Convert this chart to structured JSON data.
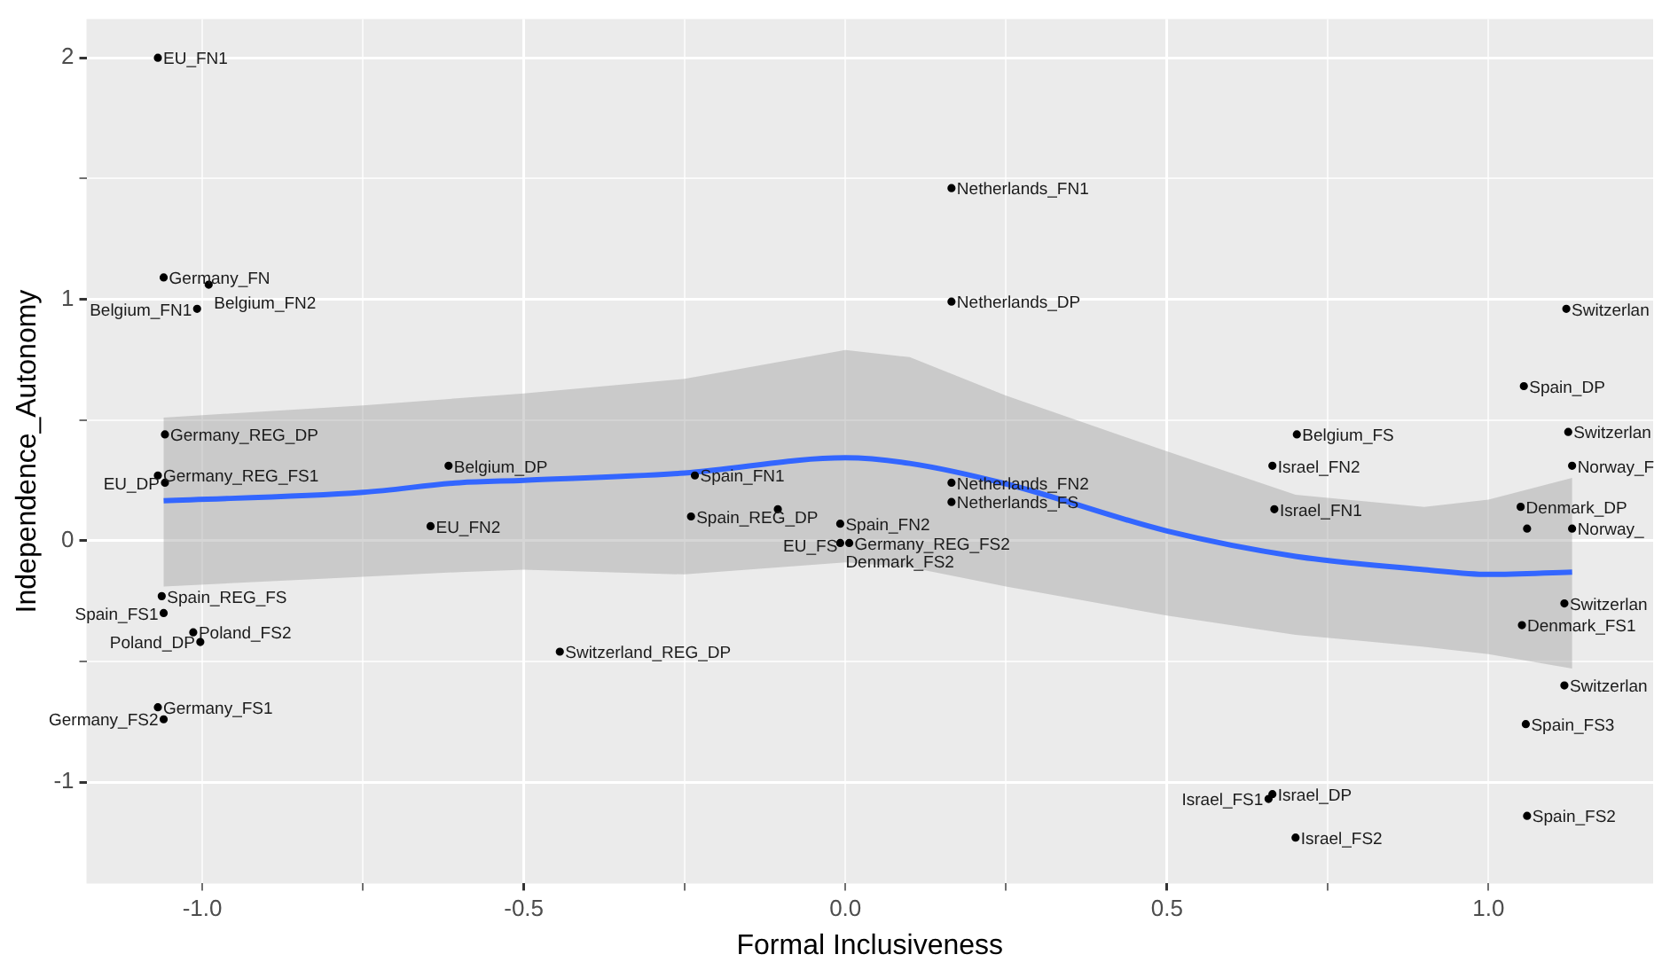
{
  "chart_data": {
    "type": "scatter",
    "xlabel": "Formal Inclusiveness",
    "ylabel": "Independence_Autonomy",
    "xlim": [
      -1.18,
      1.256
    ],
    "ylim": [
      -1.42,
      2.16
    ],
    "xticks": [
      {
        "value": -1,
        "label": "-1.0"
      },
      {
        "value": -0.75,
        "label": null
      },
      -0.5,
      {
        "value": -0.25,
        "label": null
      },
      {
        "value": 0,
        "label": "0.0"
      },
      {
        "value": 0.25,
        "label": null
      },
      0.5,
      {
        "value": 0.75,
        "label": null
      },
      {
        "value": 1,
        "label": "1.0"
      }
    ],
    "yticks": [
      -1,
      {
        "value": -0.5,
        "label": null
      },
      0,
      {
        "value": 0.5,
        "label": null
      },
      1,
      {
        "value": 1.5,
        "label": null
      },
      2
    ],
    "grid": true,
    "legend": false,
    "marker": "circle",
    "series": [
      {
        "color": "#000000",
        "x": [
          -1.069,
          -1.06,
          -0.99,
          -1.008,
          -1.058,
          -1.069,
          -1.058,
          -0.617,
          -0.645,
          -1.063,
          -1.06,
          -1.014,
          -1.003,
          -1.069,
          -1.06,
          -0.444,
          0.165,
          0.165,
          -0.234,
          -0.24,
          -0.105,
          -0.008,
          0.006,
          -0.008,
          0.165,
          0.165,
          0.702,
          0.664,
          0.667,
          0.664,
          0.658,
          0.7,
          1.121,
          1.055,
          1.124,
          1.13,
          1.05,
          1.06,
          1.13,
          1.118,
          1.052,
          1.118,
          1.058,
          1.06
        ],
        "values": [
          2.0,
          1.09,
          1.06,
          0.96,
          0.44,
          0.27,
          0.24,
          0.31,
          0.06,
          -0.23,
          -0.3,
          -0.38,
          -0.42,
          -0.69,
          -0.74,
          -0.46,
          1.46,
          0.99,
          0.27,
          0.1,
          0.13,
          0.07,
          -0.01,
          -0.01,
          0.24,
          0.16,
          0.44,
          0.31,
          0.13,
          -1.05,
          -1.07,
          -1.23,
          0.96,
          0.64,
          0.45,
          0.31,
          0.14,
          0.05,
          0.05,
          -0.26,
          -0.35,
          -0.6,
          -0.76,
          -1.14
        ]
      },
      {
        "type": "line",
        "marker": "none",
        "color": "#3366ff",
        "x": [
          -1.06,
          -0.75,
          -0.6,
          -0.5,
          -0.25,
          0.0,
          0.1,
          0.25,
          0.5,
          0.7,
          0.9,
          1.0,
          1.13
        ],
        "values": [
          0.165,
          0.2,
          0.24,
          0.25,
          0.28,
          0.343,
          0.32,
          0.235,
          0.04,
          -0.065,
          -0.12,
          -0.14,
          -0.13
        ],
        "lower": [
          -0.19,
          -0.15,
          -0.13,
          -0.12,
          -0.14,
          -0.09,
          -0.11,
          -0.19,
          -0.31,
          -0.39,
          -0.44,
          -0.47,
          -0.53
        ],
        "upper": [
          0.51,
          0.56,
          0.59,
          0.61,
          0.67,
          0.79,
          0.76,
          0.6,
          0.37,
          0.19,
          0.14,
          0.17,
          0.26
        ]
      }
    ],
    "annotations": [
      {
        "text": "EU_FN1",
        "x": -1.069,
        "y": 2.0
      },
      {
        "text": "Germany_FN",
        "x": -1.06,
        "y": 1.09
      },
      {
        "text": "Belgium_FN2",
        "x": -0.99,
        "y": 1.06
      },
      {
        "text": "Belgium_FN1",
        "x": -1.008,
        "y": 0.96
      },
      {
        "text": "Germany_REG_DP",
        "x": -1.058,
        "y": 0.44
      },
      {
        "text": "Germany_REG_FS1",
        "x": -1.069,
        "y": 0.27
      },
      {
        "text": "EU_DP",
        "x": -1.058,
        "y": 0.24
      },
      {
        "text": "Belgium_DP",
        "x": -0.617,
        "y": 0.31
      },
      {
        "text": "EU_FN2",
        "x": -0.645,
        "y": 0.06
      },
      {
        "text": "Spain_REG_FS",
        "x": -1.063,
        "y": -0.23
      },
      {
        "text": "Spain_FS1",
        "x": -1.06,
        "y": -0.3
      },
      {
        "text": "Poland_FS2",
        "x": -1.014,
        "y": -0.38
      },
      {
        "text": "Poland_DP",
        "x": -1.003,
        "y": -0.42
      },
      {
        "text": "Germany_FS1",
        "x": -1.069,
        "y": -0.69
      },
      {
        "text": "Germany_FS2",
        "x": -1.06,
        "y": -0.74
      },
      {
        "text": "Switzerland_REG_DP",
        "x": -0.444,
        "y": -0.46
      },
      {
        "text": "Netherlands_FN1",
        "x": 0.165,
        "y": 1.46
      },
      {
        "text": "Netherlands_DP",
        "x": 0.165,
        "y": 0.99
      },
      {
        "text": "Spain_FN1",
        "x": -0.234,
        "y": 0.27
      },
      {
        "text": "Spain_REG_DP",
        "x": -0.24,
        "y": 0.1
      },
      {
        "text": "EU_FS",
        "x": -0.105,
        "y": 0.13
      },
      {
        "text": "Spain_FN2",
        "x": -0.008,
        "y": 0.07
      },
      {
        "text": "Germany_REG_FS2",
        "x": 0.006,
        "y": -0.01
      },
      {
        "text": "Denmark_FS2",
        "x": -0.008,
        "y": -0.01
      },
      {
        "text": "Netherlands_FN2",
        "x": 0.165,
        "y": 0.24
      },
      {
        "text": "Netherlands_FS",
        "x": 0.165,
        "y": 0.16
      },
      {
        "text": "Belgium_FS",
        "x": 0.702,
        "y": 0.44
      },
      {
        "text": "Israel_FN2",
        "x": 0.664,
        "y": 0.31
      },
      {
        "text": "Israel_FN1",
        "x": 0.667,
        "y": 0.13
      },
      {
        "text": "Israel_DP",
        "x": 0.664,
        "y": -1.05
      },
      {
        "text": "Israel_FS1",
        "x": 0.658,
        "y": -1.07
      },
      {
        "text": "Israel_FS2",
        "x": 0.7,
        "y": -1.23
      },
      {
        "text": "Switzerlan",
        "x": 1.121,
        "y": 0.96
      },
      {
        "text": "Spain_DP",
        "x": 1.055,
        "y": 0.64
      },
      {
        "text": "Switzerlan",
        "x": 1.124,
        "y": 0.45
      },
      {
        "text": "Norway_F",
        "x": 1.13,
        "y": 0.31
      },
      {
        "text": "Denmark_DP",
        "x": 1.05,
        "y": 0.14
      },
      {
        "text": "Norway_",
        "x": 1.13,
        "y": 0.05
      },
      {
        "text": "Switzerlan",
        "x": 1.118,
        "y": -0.26
      },
      {
        "text": "Denmark_FS1",
        "x": 1.052,
        "y": -0.35
      },
      {
        "text": "Switzerlan",
        "x": 1.118,
        "y": -0.6
      },
      {
        "text": "Spain_FS3",
        "x": 1.058,
        "y": -0.76
      },
      {
        "text": "Spain_FS2",
        "x": 1.06,
        "y": -1.14
      }
    ]
  }
}
